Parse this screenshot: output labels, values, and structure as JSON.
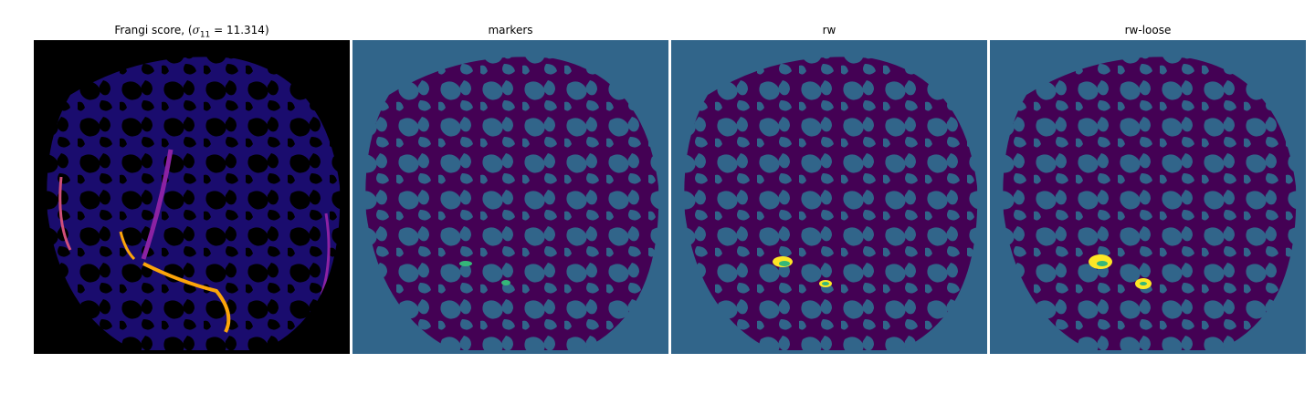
{
  "figure": {
    "panels": [
      {
        "id": "frangi",
        "title_prefix": "Frangi score, (",
        "title_math": "σ",
        "title_sub": "11",
        "title_suffix": " = 11.314)",
        "colormap": "magma-like",
        "background": "#000000"
      },
      {
        "id": "markers",
        "title": "markers",
        "colormap": "viridis-like",
        "background": "#31658a"
      },
      {
        "id": "rw",
        "title": "rw",
        "colormap": "viridis-like",
        "background": "#31658a"
      },
      {
        "id": "rw-loose",
        "title": "rw-loose",
        "colormap": "viridis-like",
        "background": "#31658a"
      }
    ],
    "colors": {
      "foreground_purple": "#440154",
      "background_blue": "#31658a",
      "marker_green": "#35b779",
      "label_yellow": "#fde725",
      "frangi_bg": "#000000",
      "frangi_base": "#1a0c6e",
      "frangi_mid": "#8b22a3",
      "frangi_hot": "#fca50a"
    }
  }
}
